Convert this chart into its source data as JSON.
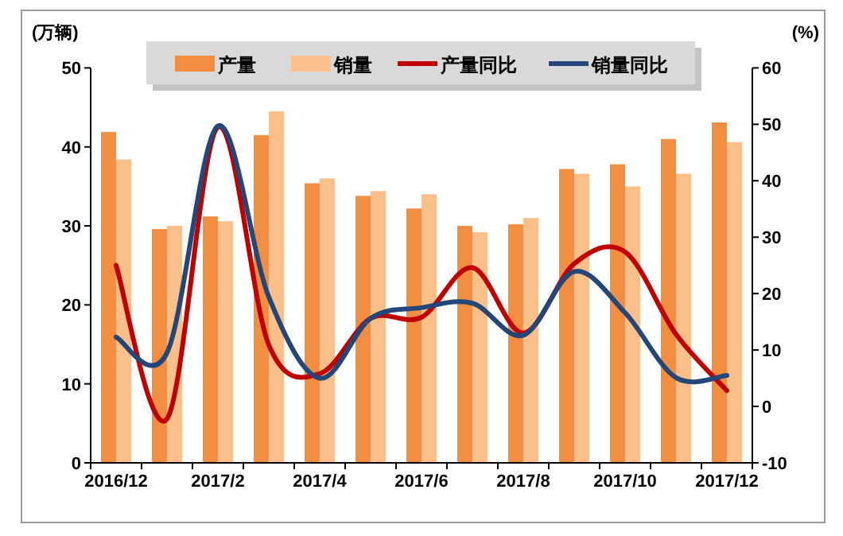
{
  "chart_data": {
    "type": "bar",
    "ylabel": "(万辆)",
    "y2label": "(%)",
    "categories": [
      "2016/12",
      null,
      "2017/2",
      null,
      "2017/4",
      null,
      "2017/6",
      null,
      "2017/8",
      null,
      "2017/10",
      null,
      "2017/12"
    ],
    "series": [
      {
        "name": "产量",
        "color": "#f38d3f",
        "values": [
          41.9,
          29.6,
          31.2,
          41.5,
          35.4,
          33.8,
          32.2,
          30.0,
          30.2,
          37.2,
          37.8,
          41.0,
          43.1
        ]
      },
      {
        "name": "销量",
        "color": "#fbbf8a",
        "values": [
          38.4,
          30.0,
          30.6,
          44.5,
          36.0,
          34.4,
          34.0,
          29.2,
          31.0,
          36.6,
          35.0,
          36.6,
          40.6
        ]
      },
      {
        "name": "产量同比",
        "type": "line",
        "axis": "y2",
        "color": "#c00000",
        "values": [
          25.0,
          -2.2,
          49.5,
          10.9,
          5.8,
          15.6,
          15.8,
          24.6,
          13.0,
          25.3,
          27.4,
          12.8,
          2.8
        ]
      },
      {
        "name": "销量同比",
        "type": "line",
        "axis": "y2",
        "color": "#24477a",
        "values": [
          12.3,
          9.5,
          49.7,
          19.4,
          5.0,
          15.6,
          17.5,
          18.3,
          12.6,
          23.9,
          16.6,
          5.1,
          5.5
        ]
      }
    ],
    "ylim": [
      0,
      50
    ],
    "yticks": [
      0,
      10,
      20,
      30,
      40,
      50
    ],
    "y2lim": [
      -10,
      60
    ],
    "y2ticks": [
      -10,
      0,
      10,
      20,
      30,
      40,
      50,
      60
    ],
    "legend": "top",
    "grid": false,
    "marker": "none",
    "line_style": "solid"
  }
}
